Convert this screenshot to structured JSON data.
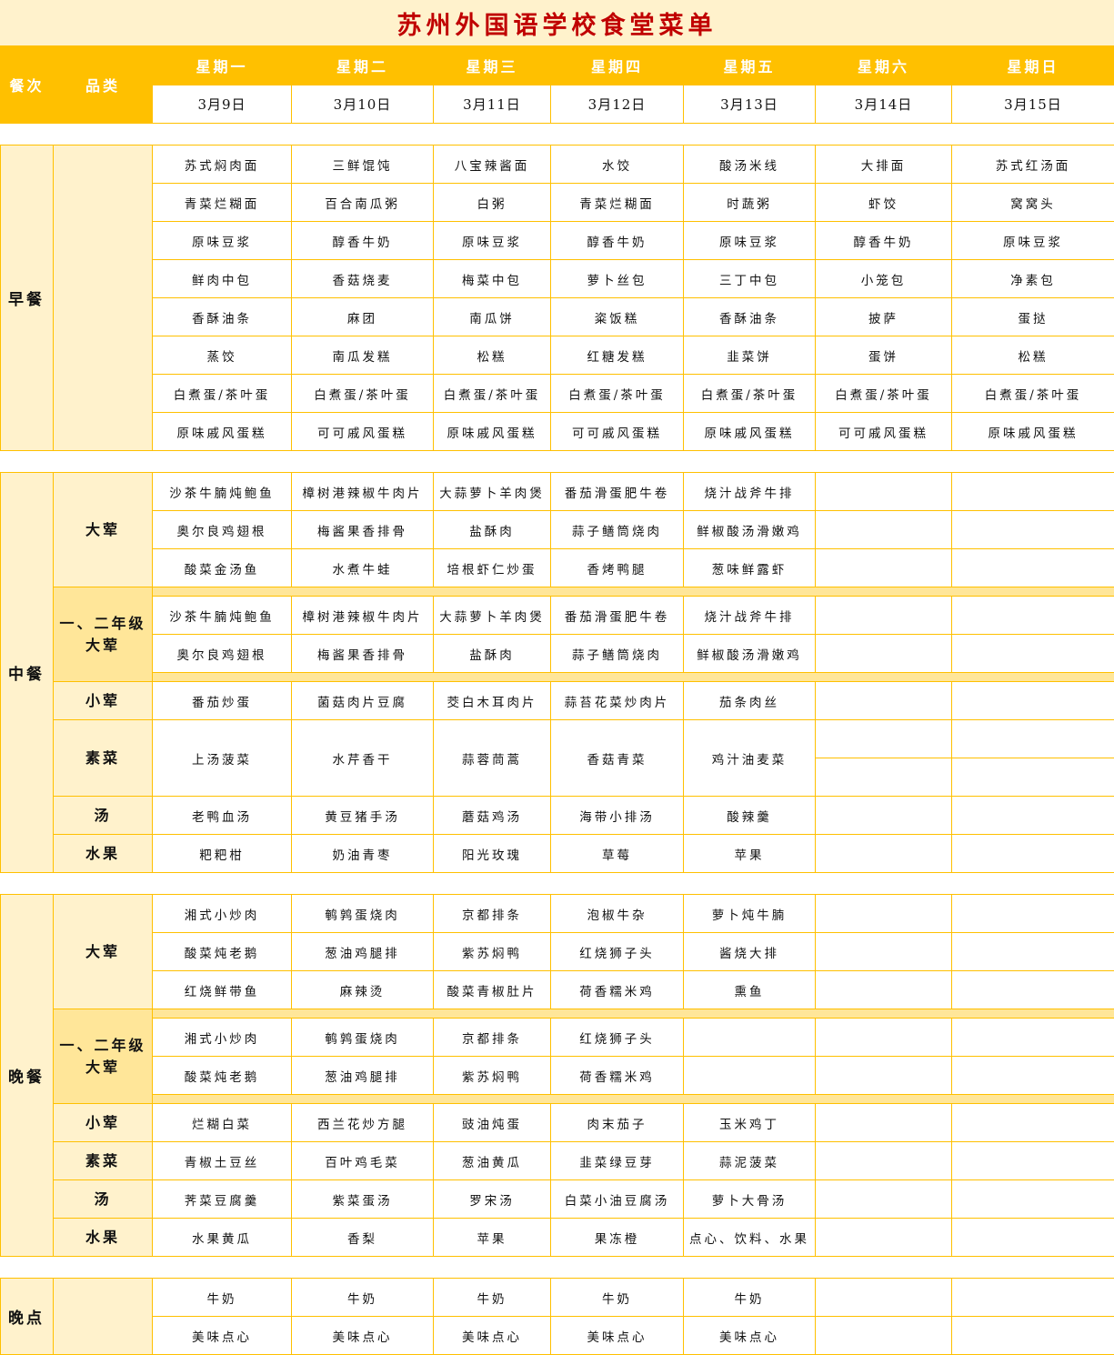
{
  "title": "苏州外国语学校食堂菜单",
  "colors": {
    "header": "#FFC000",
    "light": "#FFF2CC",
    "highlight": "#FFE699",
    "title": "#C00000"
  },
  "header": {
    "meal_label": "餐次",
    "category_label": "品类",
    "days": [
      "星期一",
      "星期二",
      "星期三",
      "星期四",
      "星期五",
      "星期六",
      "星期日"
    ],
    "dates": [
      "3月9日",
      "3月10日",
      "3月11日",
      "3月12日",
      "3月13日",
      "3月14日",
      "3月15日"
    ]
  },
  "meals": [
    {
      "name": "早餐",
      "groups": [
        {
          "category": "",
          "rows": [
            [
              "苏式焖肉面",
              "三鲜馄饨",
              "八宝辣酱面",
              "水饺",
              "酸汤米线",
              "大排面",
              "苏式红汤面"
            ],
            [
              "青菜烂糊面",
              "百合南瓜粥",
              "白粥",
              "青菜烂糊面",
              "时蔬粥",
              "虾饺",
              "窝窝头"
            ],
            [
              "原味豆浆",
              "醇香牛奶",
              "原味豆浆",
              "醇香牛奶",
              "原味豆浆",
              "醇香牛奶",
              "原味豆浆"
            ],
            [
              "鲜肉中包",
              "香菇烧麦",
              "梅菜中包",
              "萝卜丝包",
              "三丁中包",
              "小笼包",
              "净素包"
            ],
            [
              "香酥油条",
              "麻团",
              "南瓜饼",
              "粢饭糕",
              "香酥油条",
              "披萨",
              "蛋挞"
            ],
            [
              "蒸饺",
              "南瓜发糕",
              "松糕",
              "红糖发糕",
              "韭菜饼",
              "蛋饼",
              "松糕"
            ],
            [
              "白煮蛋/茶叶蛋",
              "白煮蛋/茶叶蛋",
              "白煮蛋/茶叶蛋",
              "白煮蛋/茶叶蛋",
              "白煮蛋/茶叶蛋",
              "白煮蛋/茶叶蛋",
              "白煮蛋/茶叶蛋"
            ],
            [
              "原味戚风蛋糕",
              "可可戚风蛋糕",
              "原味戚风蛋糕",
              "可可戚风蛋糕",
              "原味戚风蛋糕",
              "可可戚风蛋糕",
              "原味戚风蛋糕"
            ]
          ]
        }
      ]
    },
    {
      "name": "中餐",
      "groups": [
        {
          "category": "大荤",
          "rows": [
            [
              "沙茶牛腩炖鲍鱼",
              "樟树港辣椒牛肉片",
              "大蒜萝卜羊肉煲",
              "番茄滑蛋肥牛卷",
              "烧汁战斧牛排",
              "",
              ""
            ],
            [
              "奥尔良鸡翅根",
              "梅酱果香排骨",
              "盐酥肉",
              "蒜子鳝筒烧肉",
              "鲜椒酸汤滑嫩鸡",
              "",
              ""
            ],
            [
              "酸菜金汤鱼",
              "水煮牛蛙",
              "培根虾仁炒蛋",
              "香烤鸭腿",
              "葱味鲜露虾",
              "",
              ""
            ]
          ]
        },
        {
          "category": "一、二年级\n大荤",
          "highlight": true,
          "rows": [
            [
              "沙茶牛腩炖鲍鱼",
              "樟树港辣椒牛肉片",
              "大蒜萝卜羊肉煲",
              "番茄滑蛋肥牛卷",
              "烧汁战斧牛排",
              "",
              ""
            ],
            [
              "奥尔良鸡翅根",
              "梅酱果香排骨",
              "盐酥肉",
              "蒜子鳝筒烧肉",
              "鲜椒酸汤滑嫩鸡",
              "",
              ""
            ]
          ]
        },
        {
          "category": "小荤",
          "rows": [
            [
              "番茄炒蛋",
              "菌菇肉片豆腐",
              "茭白木耳肉片",
              "蒜苔花菜炒肉片",
              "茄条肉丝",
              "",
              ""
            ]
          ]
        },
        {
          "category": "素菜",
          "rows": [
            [
              "上汤菠菜",
              "水芹香干",
              "蒜蓉茼蒿",
              "香菇青菜",
              "鸡汁油麦菜",
              "",
              ""
            ],
            [
              null,
              null,
              null,
              null,
              null,
              "",
              ""
            ]
          ]
        },
        {
          "category": "汤",
          "rows": [
            [
              "老鸭血汤",
              "黄豆猪手汤",
              "蘑菇鸡汤",
              "海带小排汤",
              "酸辣羹",
              "",
              ""
            ]
          ]
        },
        {
          "category": "水果",
          "rows": [
            [
              "粑粑柑",
              "奶油青枣",
              "阳光玫瑰",
              "草莓",
              "苹果",
              "",
              ""
            ]
          ]
        }
      ]
    },
    {
      "name": "晚餐",
      "groups": [
        {
          "category": "大荤",
          "rows": [
            [
              "湘式小炒肉",
              "鹌鹑蛋烧肉",
              "京都排条",
              "泡椒牛杂",
              "萝卜炖牛腩",
              "",
              ""
            ],
            [
              "酸菜炖老鹅",
              "葱油鸡腿排",
              "紫苏焖鸭",
              "红烧狮子头",
              "酱烧大排",
              "",
              ""
            ],
            [
              "红烧鲜带鱼",
              "麻辣烫",
              "酸菜青椒肚片",
              "荷香糯米鸡",
              "熏鱼",
              "",
              ""
            ]
          ]
        },
        {
          "category": "一、二年级\n大荤",
          "highlight": true,
          "rows": [
            [
              "湘式小炒肉",
              "鹌鹑蛋烧肉",
              "京都排条",
              "红烧狮子头",
              "",
              "",
              ""
            ],
            [
              "酸菜炖老鹅",
              "葱油鸡腿排",
              "紫苏焖鸭",
              "荷香糯米鸡",
              "",
              "",
              ""
            ]
          ]
        },
        {
          "category": "小荤",
          "rows": [
            [
              "烂糊白菜",
              "西兰花炒方腿",
              "豉油炖蛋",
              "肉末茄子",
              "玉米鸡丁",
              "",
              ""
            ]
          ]
        },
        {
          "category": "素菜",
          "rows": [
            [
              "青椒土豆丝",
              "百叶鸡毛菜",
              "葱油黄瓜",
              "韭菜绿豆芽",
              "蒜泥菠菜",
              "",
              ""
            ]
          ]
        },
        {
          "category": "汤",
          "rows": [
            [
              "荠菜豆腐羹",
              "紫菜蛋汤",
              "罗宋汤",
              "白菜小油豆腐汤",
              "萝卜大骨汤",
              "",
              ""
            ]
          ]
        },
        {
          "category": "水果",
          "rows": [
            [
              "水果黄瓜",
              "香梨",
              "苹果",
              "果冻橙",
              "点心、饮料、水果",
              "",
              ""
            ]
          ]
        }
      ]
    },
    {
      "name": "晚点",
      "groups": [
        {
          "category": "",
          "rows": [
            [
              "牛奶",
              "牛奶",
              "牛奶",
              "牛奶",
              "牛奶",
              "",
              ""
            ],
            [
              "美味点心",
              "美味点心",
              "美味点心",
              "美味点心",
              "美味点心",
              "",
              ""
            ]
          ]
        }
      ]
    }
  ]
}
